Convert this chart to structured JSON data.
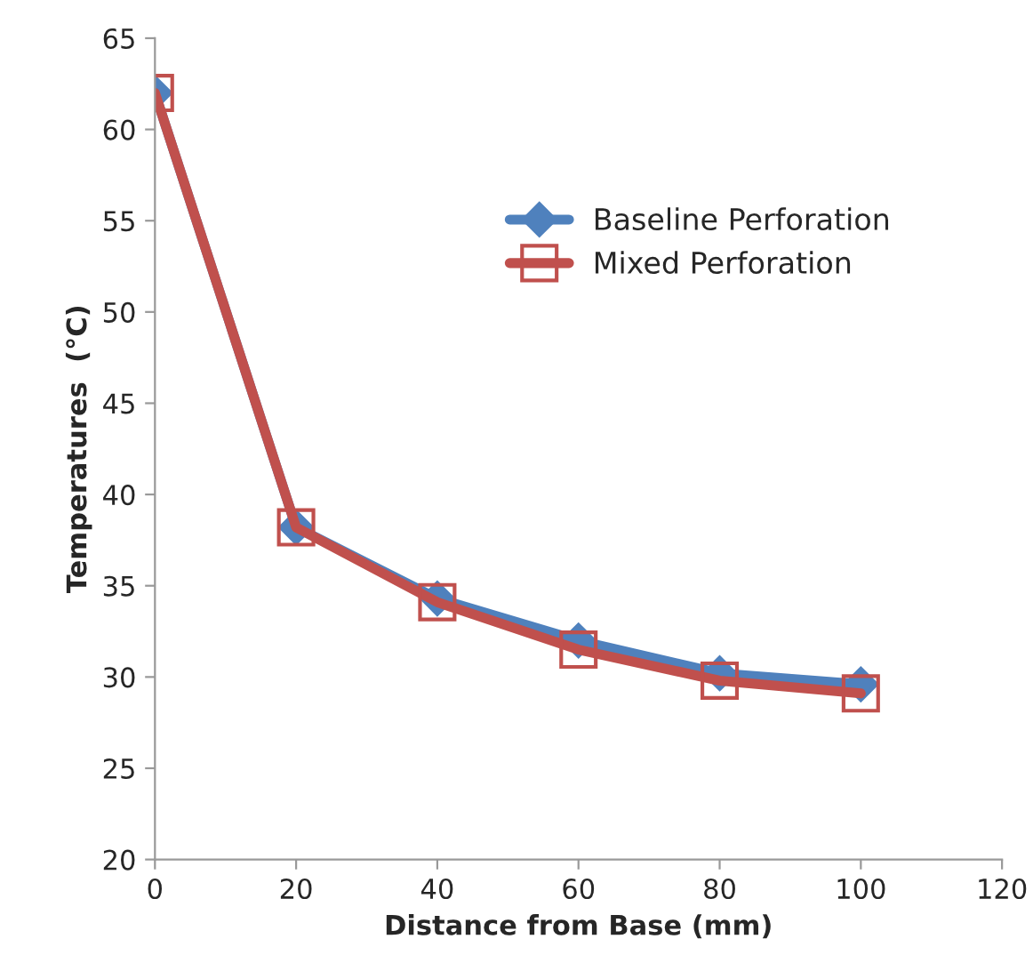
{
  "chart_data": {
    "type": "line",
    "xlabel": "Distance from Base (mm)",
    "ylabel": "Temperatures  (°C)",
    "x": [
      0,
      20,
      40,
      60,
      80,
      100
    ],
    "series": [
      {
        "name": "Baseline Perforation",
        "color": "#4f81bd",
        "marker": "diamond",
        "values": [
          62,
          38.2,
          34.3,
          32,
          30.2,
          29.6
        ]
      },
      {
        "name": "Mixed Perforation",
        "color": "#c0504d",
        "marker": "square",
        "values": [
          62,
          38.2,
          34.1,
          31.5,
          29.8,
          29.1
        ]
      }
    ],
    "xlim": [
      0,
      120
    ],
    "xticks": [
      0,
      20,
      40,
      60,
      80,
      100,
      120
    ],
    "ylim": [
      20,
      65
    ],
    "yticks": [
      20,
      25,
      30,
      35,
      40,
      45,
      50,
      55,
      60,
      65
    ],
    "grid": false,
    "legend": "right"
  }
}
